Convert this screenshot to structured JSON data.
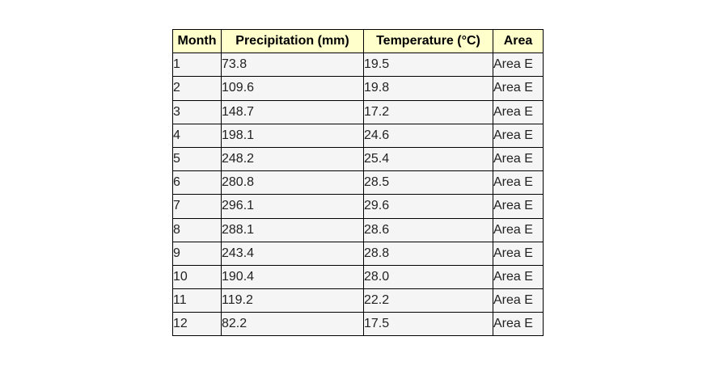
{
  "chart_data": {
    "type": "table",
    "columns": [
      "Month",
      "Precipitation (mm)",
      "Temperature (°C)",
      "Area"
    ],
    "rows": [
      [
        "1",
        "73.8",
        "19.5",
        "Area E"
      ],
      [
        "2",
        "109.6",
        "19.8",
        "Area E"
      ],
      [
        "3",
        "148.7",
        "17.2",
        "Area E"
      ],
      [
        "4",
        "198.1",
        "24.6",
        "Area E"
      ],
      [
        "5",
        "248.2",
        "25.4",
        "Area E"
      ],
      [
        "6",
        "280.8",
        "28.5",
        "Area E"
      ],
      [
        "7",
        "296.1",
        "29.6",
        "Area E"
      ],
      [
        "8",
        "288.1",
        "28.6",
        "Area E"
      ],
      [
        "9",
        "243.4",
        "28.8",
        "Area E"
      ],
      [
        "10",
        "190.4",
        "28.0",
        "Area E"
      ],
      [
        "11",
        "119.2",
        "22.2",
        "Area E"
      ],
      [
        "12",
        "82.2",
        "17.5",
        "Area E"
      ]
    ],
    "header_color": "#ffffcc",
    "cell_color": "#f5f5f5",
    "border_color": "#000000"
  }
}
